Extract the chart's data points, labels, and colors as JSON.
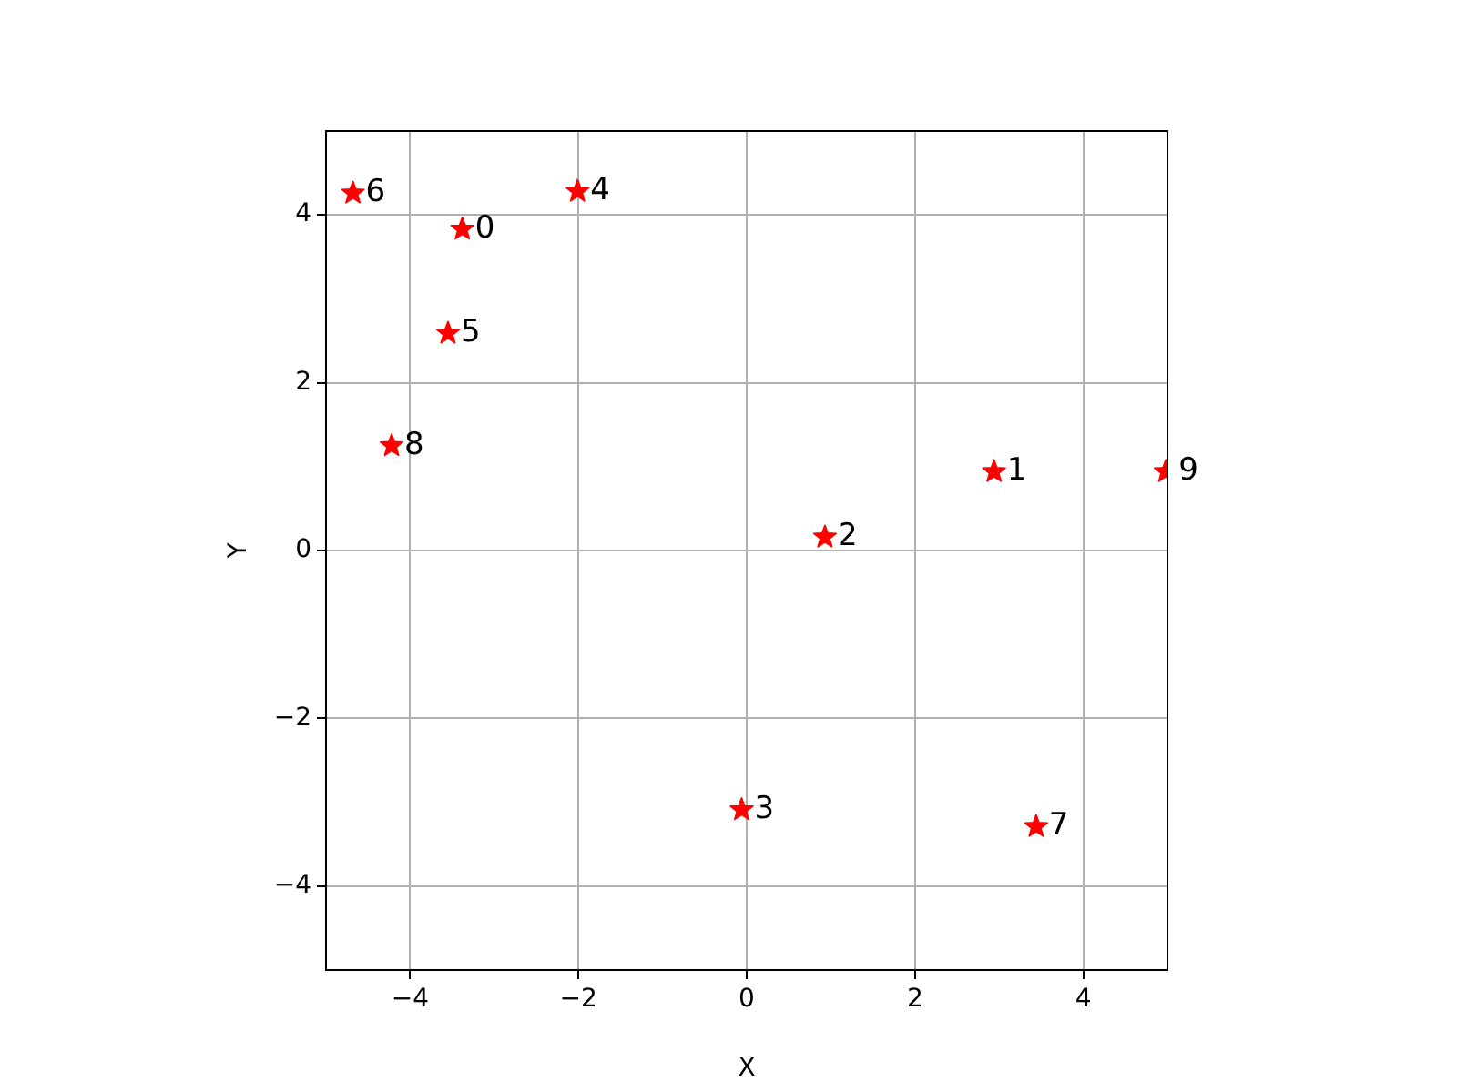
{
  "chart_data": {
    "type": "scatter",
    "xlabel": "X",
    "ylabel": "Y",
    "x": [
      -3.38,
      2.94,
      0.93,
      -0.06,
      -2.01,
      -3.55,
      -4.68,
      3.44,
      -4.22,
      4.98
    ],
    "series": [
      {
        "color": "#ff0000",
        "values": [
          3.83,
          0.94,
          0.16,
          -3.09,
          4.28,
          2.59,
          4.26,
          -3.29,
          1.25,
          0.94
        ]
      }
    ],
    "xlim": [
      -5,
      5
    ],
    "ylim": [
      -5,
      5
    ],
    "xticks": [
      {
        "value": -4,
        "label": "−4"
      },
      {
        "value": -2,
        "label": "−2"
      },
      0,
      2,
      4
    ],
    "yticks": [
      {
        "value": -4,
        "label": "−4"
      },
      {
        "value": -2,
        "label": "−2"
      },
      0,
      2,
      4
    ],
    "grid": true,
    "marker": "star",
    "annotations": [
      {
        "text": "0",
        "x": -3.38,
        "y": 3.83
      },
      {
        "text": "1",
        "x": 2.94,
        "y": 0.94
      },
      {
        "text": "2",
        "x": 0.93,
        "y": 0.16
      },
      {
        "text": "3",
        "x": -0.06,
        "y": -3.09
      },
      {
        "text": "4",
        "x": -2.01,
        "y": 4.28
      },
      {
        "text": "5",
        "x": -3.55,
        "y": 2.59
      },
      {
        "text": "6",
        "x": -4.68,
        "y": 4.26
      },
      {
        "text": "7",
        "x": 3.44,
        "y": -3.29
      },
      {
        "text": "8",
        "x": -4.22,
        "y": 1.25
      },
      {
        "text": "9",
        "x": 4.98,
        "y": 0.94
      }
    ]
  }
}
